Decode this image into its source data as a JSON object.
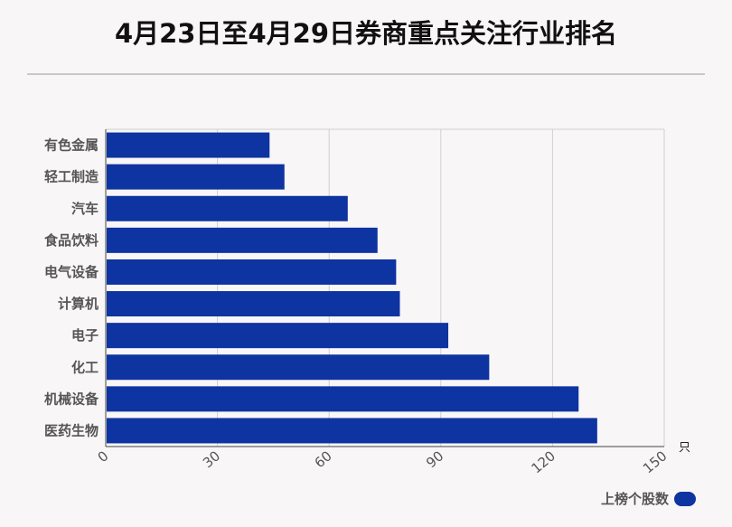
{
  "chart_data": {
    "type": "bar",
    "orientation": "horizontal",
    "title": "4月23日至4月29日券商重点关注行业排名",
    "categories": [
      "有色金属",
      "轻工制造",
      "汽车",
      "食品饮料",
      "电气设备",
      "计算机",
      "电子",
      "化工",
      "机械设备",
      "医药生物"
    ],
    "series": [
      {
        "name": "上榜个股数",
        "values": [
          44,
          48,
          65,
          73,
          78,
          79,
          92,
          103,
          127,
          132
        ]
      }
    ],
    "xlim": [
      0,
      150
    ],
    "xticks": [
      "0",
      "30",
      "60",
      "90",
      "120",
      "150"
    ],
    "xunit": "只",
    "grid": true,
    "legend_position": "bottom-right",
    "bar_color": "#0d34a0"
  }
}
